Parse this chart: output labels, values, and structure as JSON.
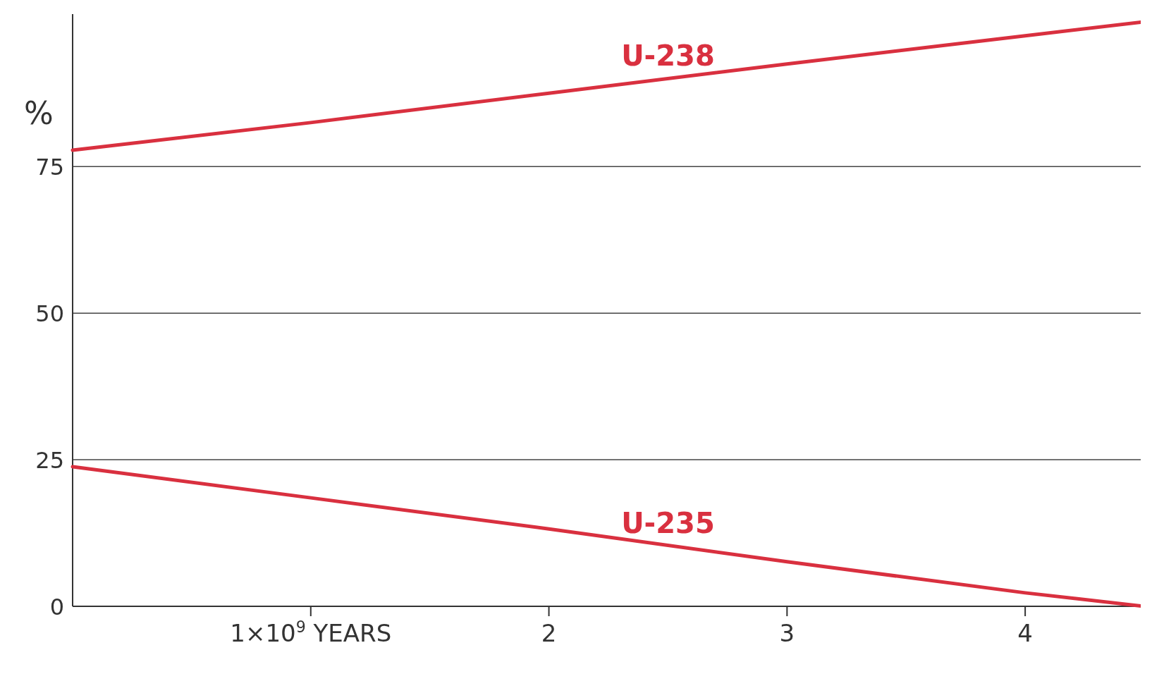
{
  "chart_data": {
    "type": "line",
    "ylabel": "%",
    "xlim": [
      0,
      4.5
    ],
    "xticks": [
      {
        "value": 1,
        "label": "1×10$^{9}$ YEARS"
      },
      2,
      3,
      4
    ],
    "ylim": [
      0,
      101
    ],
    "yticks": [
      0,
      25,
      50,
      75
    ],
    "grid": "y",
    "legend": false,
    "marker": "none",
    "line_style": "solid",
    "series": [
      {
        "name": "U-238",
        "color": "#d9303f",
        "x": [
          0,
          1,
          2,
          3,
          4,
          4.5
        ],
        "values": [
          77.8,
          82.5,
          87.5,
          92.5,
          97.3,
          99.7
        ]
      },
      {
        "name": "U-235",
        "color": "#d9303f",
        "x": [
          0,
          1,
          2,
          3,
          4,
          4.5
        ],
        "values": [
          23.8,
          18.5,
          13.2,
          7.6,
          2.3,
          0
        ]
      }
    ]
  }
}
